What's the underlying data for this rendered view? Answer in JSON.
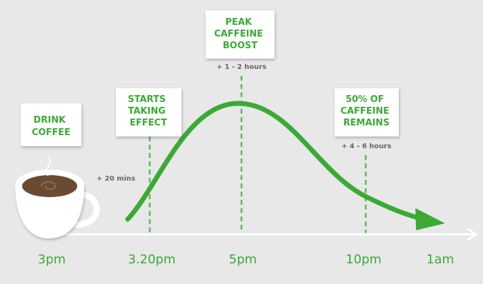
{
  "stages": [
    {
      "label": [
        "DRINK",
        "COFFEE"
      ],
      "time": "3pm"
    },
    {
      "label": [
        "STARTS",
        "TAKING",
        "EFFECT"
      ],
      "time": "3.20pm",
      "offset": "+ 20 mins"
    },
    {
      "label": [
        "PEAK",
        "CAFFEINE",
        "BOOST"
      ],
      "time": "5pm",
      "offset": "+ 1 - 2 hours"
    },
    {
      "label": [
        "50% OF",
        "CAFFEINE",
        "REMAINS"
      ],
      "time": "10pm",
      "offset": "+ 4 - 6 hours"
    }
  ],
  "end_time": "1am"
}
